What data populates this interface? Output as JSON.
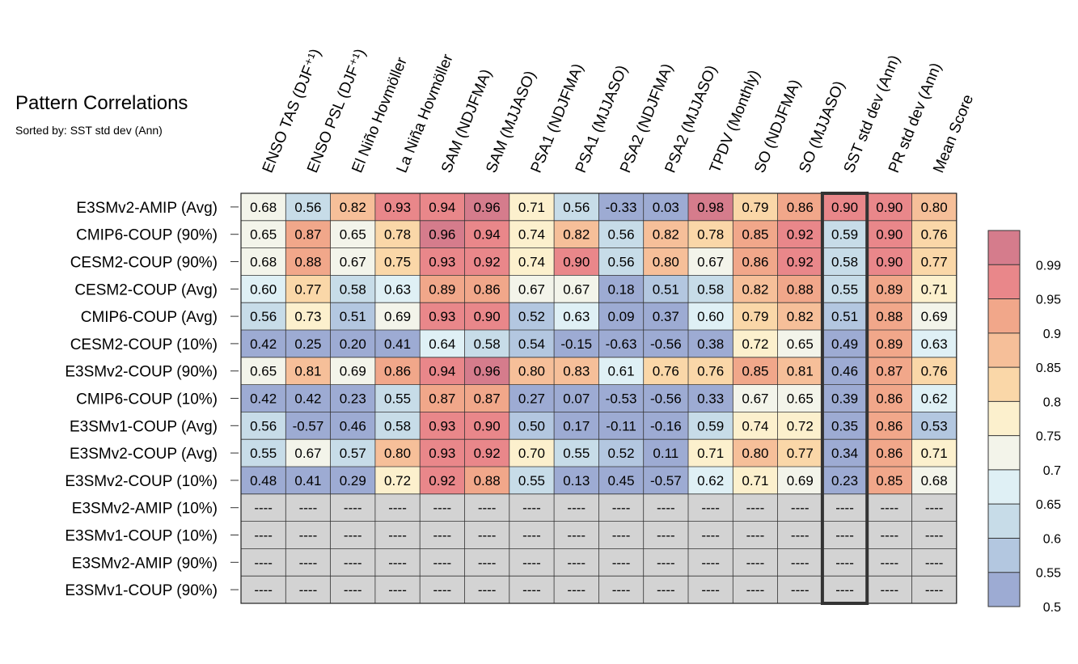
{
  "chart_data": {
    "type": "heatmap",
    "title": "Pattern Correlations",
    "subtitle": "Sorted by: SST std dev (Ann)",
    "columns": [
      "ENSO TAS (DJF⁺¹)",
      "ENSO PSL (DJF⁺¹)",
      "El Niño Hovmöller",
      "La Niña Hovmöller",
      "SAM (NDJFMA)",
      "SAM (MJJASO)",
      "PSA1 (NDJFMA)",
      "PSA1 (MJJASO)",
      "PSA2 (NDJFMA)",
      "PSA2 (MJJASO)",
      "TPDV (Monthly)",
      "SO (NDJFMA)",
      "SO (MJJASO)",
      "SST std dev (Ann)",
      "PR std dev (Ann)",
      "Mean Score"
    ],
    "rows": [
      "E3SMv2-AMIP (Avg)",
      "CMIP6-COUP (90%)",
      "CESM2-COUP (90%)",
      "CESM2-COUP (Avg)",
      "CMIP6-COUP (Avg)",
      "CESM2-COUP (10%)",
      "E3SMv2-COUP (90%)",
      "CMIP6-COUP (10%)",
      "E3SMv1-COUP (Avg)",
      "E3SMv2-COUP (Avg)",
      "E3SMv2-COUP (10%)",
      "E3SMv2-AMIP (10%)",
      "E3SMv1-COUP (10%)",
      "E3SMv2-AMIP (90%)",
      "E3SMv1-COUP (90%)"
    ],
    "values": [
      [
        "0.68",
        "0.56",
        "0.82",
        "0.93",
        "0.94",
        "0.96",
        "0.71",
        "0.56",
        "-0.33",
        "0.03",
        "0.98",
        "0.79",
        "0.86",
        "0.90",
        "0.90",
        "0.80"
      ],
      [
        "0.65",
        "0.87",
        "0.65",
        "0.78",
        "0.96",
        "0.94",
        "0.74",
        "0.82",
        "0.56",
        "0.82",
        "0.78",
        "0.85",
        "0.92",
        "0.59",
        "0.90",
        "0.76"
      ],
      [
        "0.68",
        "0.88",
        "0.67",
        "0.75",
        "0.93",
        "0.92",
        "0.74",
        "0.90",
        "0.56",
        "0.80",
        "0.67",
        "0.86",
        "0.92",
        "0.58",
        "0.90",
        "0.77"
      ],
      [
        "0.60",
        "0.77",
        "0.58",
        "0.63",
        "0.89",
        "0.86",
        "0.67",
        "0.67",
        "0.18",
        "0.51",
        "0.58",
        "0.82",
        "0.88",
        "0.55",
        "0.89",
        "0.71"
      ],
      [
        "0.56",
        "0.73",
        "0.51",
        "0.69",
        "0.93",
        "0.90",
        "0.52",
        "0.63",
        "0.09",
        "0.37",
        "0.60",
        "0.79",
        "0.82",
        "0.51",
        "0.88",
        "0.69"
      ],
      [
        "0.42",
        "0.25",
        "0.20",
        "0.41",
        "0.64",
        "0.58",
        "0.54",
        "-0.15",
        "-0.63",
        "-0.56",
        "0.38",
        "0.72",
        "0.65",
        "0.49",
        "0.89",
        "0.63"
      ],
      [
        "0.65",
        "0.81",
        "0.69",
        "0.86",
        "0.94",
        "0.96",
        "0.80",
        "0.83",
        "0.61",
        "0.76",
        "0.76",
        "0.85",
        "0.81",
        "0.46",
        "0.87",
        "0.76"
      ],
      [
        "0.42",
        "0.42",
        "0.23",
        "0.55",
        "0.87",
        "0.87",
        "0.27",
        "0.07",
        "-0.53",
        "-0.56",
        "0.33",
        "0.67",
        "0.65",
        "0.39",
        "0.86",
        "0.62"
      ],
      [
        "0.56",
        "-0.57",
        "0.46",
        "0.58",
        "0.93",
        "0.90",
        "0.50",
        "0.17",
        "-0.11",
        "-0.16",
        "0.59",
        "0.74",
        "0.72",
        "0.35",
        "0.86",
        "0.53"
      ],
      [
        "0.55",
        "0.67",
        "0.57",
        "0.80",
        "0.93",
        "0.92",
        "0.70",
        "0.55",
        "0.52",
        "0.11",
        "0.71",
        "0.80",
        "0.77",
        "0.34",
        "0.86",
        "0.71"
      ],
      [
        "0.48",
        "0.41",
        "0.29",
        "0.72",
        "0.92",
        "0.88",
        "0.55",
        "0.13",
        "0.45",
        "-0.57",
        "0.62",
        "0.71",
        "0.69",
        "0.23",
        "0.85",
        "0.68"
      ],
      [
        "----",
        "----",
        "----",
        "----",
        "----",
        "----",
        "----",
        "----",
        "----",
        "----",
        "----",
        "----",
        "----",
        "----",
        "----",
        "----"
      ],
      [
        "----",
        "----",
        "----",
        "----",
        "----",
        "----",
        "----",
        "----",
        "----",
        "----",
        "----",
        "----",
        "----",
        "----",
        "----",
        "----"
      ],
      [
        "----",
        "----",
        "----",
        "----",
        "----",
        "----",
        "----",
        "----",
        "----",
        "----",
        "----",
        "----",
        "----",
        "----",
        "----",
        "----"
      ],
      [
        "----",
        "----",
        "----",
        "----",
        "----",
        "----",
        "----",
        "----",
        "----",
        "----",
        "----",
        "----",
        "----",
        "----",
        "----",
        "----"
      ]
    ],
    "highlighted_column": "SST std dev (Ann)",
    "missing_color": "#d3d3d3",
    "colorbar": {
      "levels": [
        0.5,
        0.55,
        0.6,
        0.65,
        0.7,
        0.75,
        0.8,
        0.85,
        0.9,
        0.95,
        0.99
      ],
      "tick_labels": [
        "0.99",
        "0.95",
        "0.9",
        "0.85",
        "0.8",
        "0.75",
        "0.7",
        "0.65",
        "0.6",
        "0.55",
        "0.5"
      ],
      "colors": [
        "#9dabd3",
        "#b3c7e0",
        "#c7dce8",
        "#dff0f5",
        "#f3f4ea",
        "#fcf0cd",
        "#fad7a8",
        "#f6bf99",
        "#f1a78a",
        "#e9878a",
        "#d57c8c"
      ]
    }
  }
}
